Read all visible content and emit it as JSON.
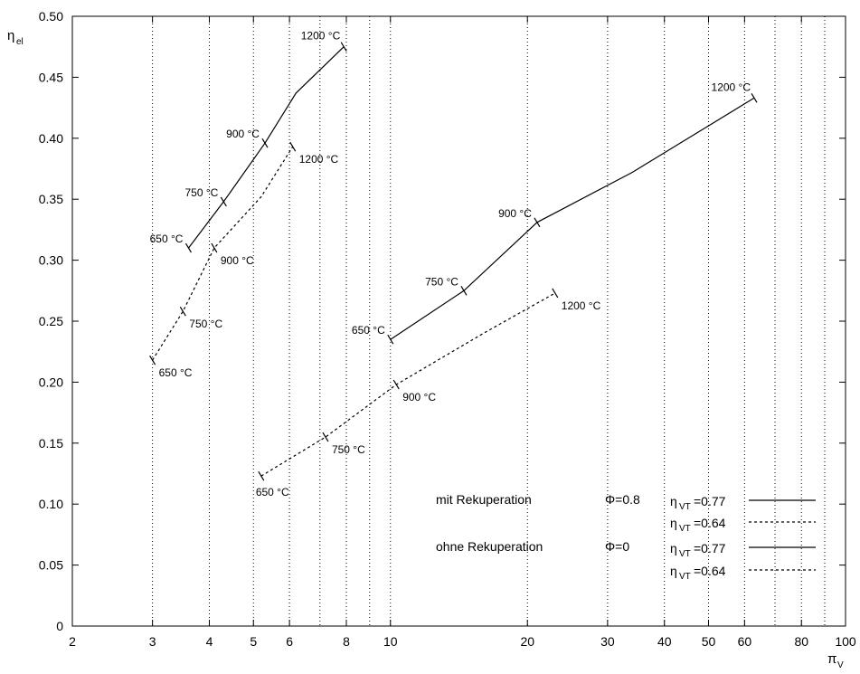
{
  "chart_data": {
    "type": "line",
    "title": "",
    "x_scale": "log",
    "xlim": [
      2,
      100
    ],
    "ylim": [
      0,
      0.5
    ],
    "grid": "vertical dotted lines at x ticks",
    "xlabel": {
      "main": "π",
      "sub": "V"
    },
    "ylabel": {
      "main": "η",
      "sub": "el"
    },
    "x_ticks": [
      2,
      3,
      4,
      5,
      6,
      8,
      10,
      20,
      30,
      40,
      50,
      60,
      80,
      100
    ],
    "x_tick_labels": [
      "2",
      "3",
      "4",
      "5",
      "6",
      "8",
      "10",
      "20",
      "30",
      "40",
      "50",
      "60",
      "80",
      "100"
    ],
    "x_grid": [
      3,
      4,
      5,
      6,
      7,
      8,
      9,
      10,
      20,
      30,
      40,
      50,
      60,
      70,
      80,
      90
    ],
    "y_ticks": [
      0,
      0.05,
      0.1,
      0.15,
      0.2,
      0.25,
      0.3,
      0.35,
      0.4,
      0.45,
      0.5
    ],
    "y_tick_labels": [
      "0",
      "0.05",
      "0.10",
      "0.15",
      "0.20",
      "0.25",
      "0.30",
      "0.35",
      "0.40",
      "0.45",
      "0.50"
    ],
    "series": [
      {
        "style": "solid",
        "points": [
          [
            3.6,
            0.31
          ],
          [
            4.3,
            0.348
          ],
          [
            5.3,
            0.396
          ],
          [
            6.2,
            0.437
          ],
          [
            7.9,
            0.475
          ]
        ],
        "markers": [
          {
            "x": 3.6,
            "y": 0.31,
            "label": "650 °C",
            "side": "left"
          },
          {
            "x": 4.3,
            "y": 0.348,
            "label": "750 °C",
            "side": "left"
          },
          {
            "x": 5.3,
            "y": 0.396,
            "label": "900 °C",
            "side": "left"
          },
          {
            "x": 7.9,
            "y": 0.475,
            "label": "1200 °C",
            "side": "above"
          }
        ]
      },
      {
        "style": "dashed",
        "points": [
          [
            3.0,
            0.218
          ],
          [
            3.5,
            0.258
          ],
          [
            4.1,
            0.31
          ],
          [
            5.2,
            0.352
          ],
          [
            6.1,
            0.393
          ]
        ],
        "markers": [
          {
            "x": 3.0,
            "y": 0.218,
            "label": "650 °C",
            "side": "below-right"
          },
          {
            "x": 3.5,
            "y": 0.258,
            "label": "750 °C",
            "side": "below-right"
          },
          {
            "x": 4.1,
            "y": 0.31,
            "label": "900 °C",
            "side": "below-right"
          },
          {
            "x": 6.1,
            "y": 0.393,
            "label": "1200 °C",
            "side": "below-right"
          }
        ]
      },
      {
        "style": "solid",
        "points": [
          [
            10,
            0.235
          ],
          [
            14.5,
            0.275
          ],
          [
            21,
            0.331
          ],
          [
            34,
            0.372
          ],
          [
            63,
            0.433
          ]
        ],
        "markers": [
          {
            "x": 10,
            "y": 0.235,
            "label": "650 °C",
            "side": "left"
          },
          {
            "x": 14.5,
            "y": 0.275,
            "label": "750 °C",
            "side": "left"
          },
          {
            "x": 21,
            "y": 0.331,
            "label": "900 °C",
            "side": "left"
          },
          {
            "x": 63,
            "y": 0.433,
            "label": "1200 °C",
            "side": "above"
          }
        ]
      },
      {
        "style": "dashed",
        "points": [
          [
            5.2,
            0.123
          ],
          [
            7.2,
            0.155
          ],
          [
            10.3,
            0.198
          ],
          [
            16,
            0.24
          ],
          [
            23,
            0.273
          ]
        ],
        "markers": [
          {
            "x": 5.2,
            "y": 0.123,
            "label": "650 °C",
            "side": "below"
          },
          {
            "x": 7.2,
            "y": 0.155,
            "label": "750 °C",
            "side": "below-right"
          },
          {
            "x": 10.3,
            "y": 0.198,
            "label": "900 °C",
            "side": "below-right"
          },
          {
            "x": 23,
            "y": 0.273,
            "label": "1200 °C",
            "side": "below-right"
          }
        ]
      }
    ],
    "legend": {
      "placement": "bottom-right",
      "rows": [
        {
          "group": "mit Rekuperation",
          "phi": "Φ=0.8",
          "eta": "η",
          "eta_sub": "VT",
          "value": "=0.77",
          "style": "solid"
        },
        {
          "group": "",
          "phi": "",
          "eta": "η",
          "eta_sub": "VT",
          "value": "=0.64",
          "style": "dashed"
        },
        {
          "group": "ohne Rekuperation",
          "phi": "Φ=0",
          "eta": "η",
          "eta_sub": "VT",
          "value": "=0.77",
          "style": "solid"
        },
        {
          "group": "",
          "phi": "",
          "eta": "η",
          "eta_sub": "VT",
          "value": "=0.64",
          "style": "dashed"
        }
      ]
    }
  }
}
